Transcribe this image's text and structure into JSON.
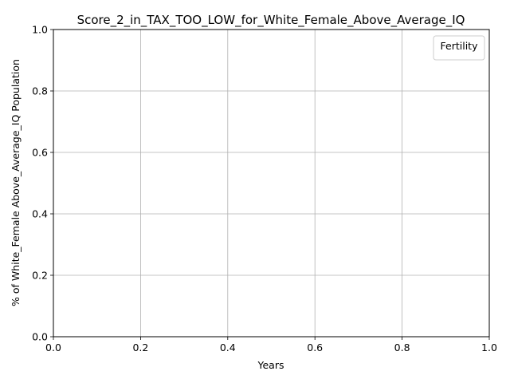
{
  "chart_data": {
    "type": "line",
    "title": "Score_2_in_TAX_TOO_LOW_for_White_Female_Above_Average_IQ",
    "xlabel": "Years",
    "ylabel": "% of White_Female Above_Average_IQ Population",
    "xlim": [
      0.0,
      1.0
    ],
    "ylim": [
      0.0,
      1.0
    ],
    "x_ticks": [
      "0.0",
      "0.2",
      "0.4",
      "0.6",
      "0.8",
      "1.0"
    ],
    "y_ticks": [
      "0.0",
      "0.2",
      "0.4",
      "0.6",
      "0.8",
      "1.0"
    ],
    "x_tick_values": [
      0.0,
      0.2,
      0.4,
      0.6,
      0.8,
      1.0
    ],
    "y_tick_values": [
      0.0,
      0.2,
      0.4,
      0.6,
      0.8,
      1.0
    ],
    "grid": true,
    "legend": {
      "title": "Fertility",
      "placement": "top-right",
      "entries": []
    },
    "series": []
  }
}
